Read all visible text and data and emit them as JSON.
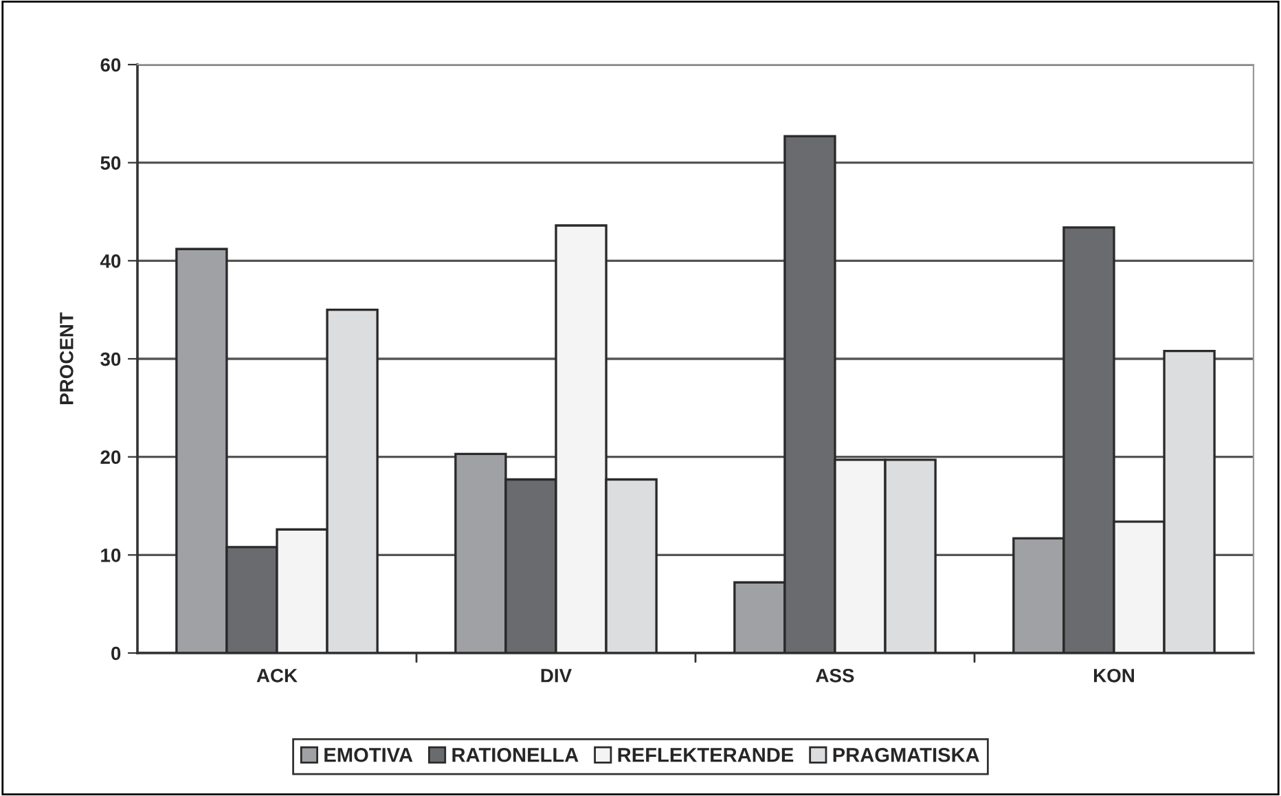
{
  "chart_data": {
    "type": "bar",
    "ylabel": "PROCENT",
    "categories": [
      "ACK",
      "DIV",
      "ASS",
      "KON"
    ],
    "series": [
      {
        "name": "EMOTIVA",
        "color": "#a0a1a5",
        "values": [
          41.2,
          20.3,
          7.2,
          11.7
        ]
      },
      {
        "name": "RATIONELLA",
        "color": "#6a6b6f",
        "values": [
          10.8,
          17.7,
          52.7,
          43.4
        ]
      },
      {
        "name": "REFLEKTERANDE",
        "color": "#f3f4f3",
        "values": [
          12.6,
          43.6,
          19.7,
          13.4
        ]
      },
      {
        "name": "PRAGMATISKA",
        "color": "#dcdddf",
        "values": [
          35.0,
          17.7,
          19.7,
          30.8
        ]
      }
    ],
    "ylim": [
      0,
      60
    ],
    "yticks": [
      0,
      10,
      20,
      30,
      40,
      50,
      60
    ],
    "grid": "y",
    "legend": "bottom"
  }
}
